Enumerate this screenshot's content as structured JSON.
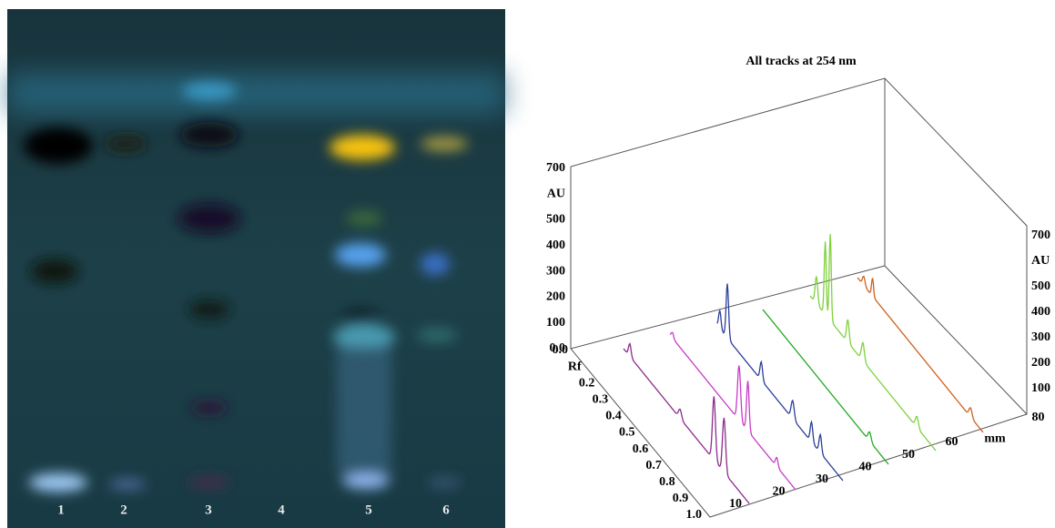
{
  "plate": {
    "lanes": [
      "1",
      "2",
      "3",
      "4",
      "5",
      "6"
    ]
  },
  "densitogram": {
    "title": "All tracks at 254 nm",
    "left_axis": [
      "0.0",
      "100",
      "200",
      "300",
      "400",
      "500",
      "AU",
      "700"
    ],
    "right_axis": [
      "100",
      "200",
      "300",
      "400",
      "500",
      "AU",
      "700"
    ],
    "rf_axis": [
      "0.0",
      "Rf",
      "0.2",
      "0.3",
      "0.4",
      "0.5",
      "0.6",
      "0.7",
      "0.8",
      "0.9",
      "1.0"
    ],
    "mm_axis": [
      "10",
      "20",
      "30",
      "40",
      "50",
      "60",
      "mm",
      "80"
    ]
  }
}
